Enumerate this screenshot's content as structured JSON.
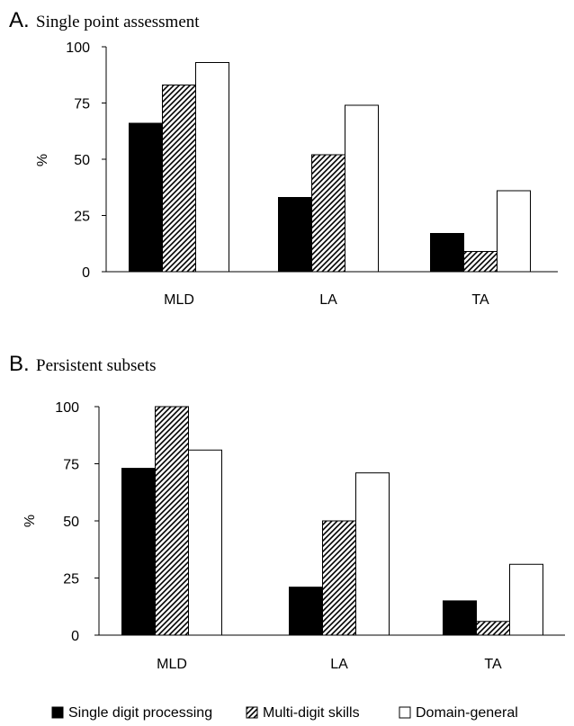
{
  "legend": {
    "items": [
      {
        "label": "Single digit processing",
        "fill": "solid-black"
      },
      {
        "label": "Multi-digit skills",
        "fill": "hatched"
      },
      {
        "label": "Domain-general",
        "fill": "white"
      }
    ]
  },
  "chart_data": [
    {
      "type": "bar",
      "panel_letter": "A.",
      "title": "Single point assessment",
      "xlabel": "",
      "ylabel": "%",
      "ylim": [
        0,
        100
      ],
      "yticks": [
        0,
        25,
        50,
        75,
        100
      ],
      "grid": false,
      "categories": [
        "MLD",
        "LA",
        "TA"
      ],
      "series": [
        {
          "name": "Single digit processing",
          "values": [
            66,
            33,
            17
          ]
        },
        {
          "name": "Multi-digit skills",
          "values": [
            83,
            52,
            9
          ]
        },
        {
          "name": "Domain-general",
          "values": [
            93,
            74,
            36
          ]
        }
      ]
    },
    {
      "type": "bar",
      "panel_letter": "B.",
      "title": "Persistent subsets",
      "xlabel": "",
      "ylabel": "%",
      "ylim": [
        0,
        100
      ],
      "yticks": [
        0,
        25,
        50,
        75,
        100
      ],
      "grid": false,
      "categories": [
        "MLD",
        "LA",
        "TA"
      ],
      "series": [
        {
          "name": "Single digit processing",
          "values": [
            73,
            21,
            15
          ]
        },
        {
          "name": "Multi-digit skills",
          "values": [
            100,
            50,
            6
          ]
        },
        {
          "name": "Domain-general",
          "values": [
            81,
            71,
            31
          ]
        }
      ],
      "legend_position": "bottom"
    }
  ]
}
